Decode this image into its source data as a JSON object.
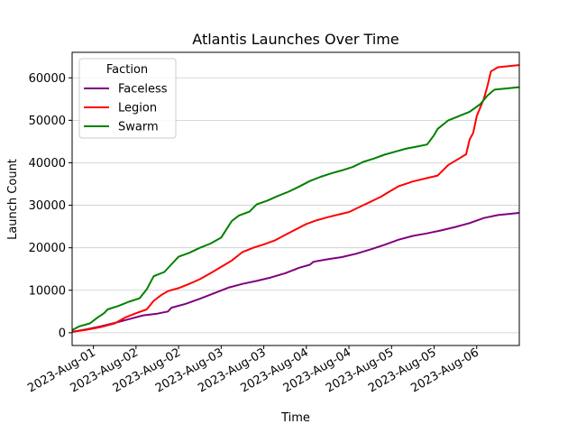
{
  "chart_data": {
    "type": "line",
    "title": "Atlantis Launches Over Time",
    "xlabel": "Time",
    "ylabel": "Launch Count",
    "x_start": "2023-07-31T18:00",
    "x_end": "2023-08-06T00:00",
    "x_ticks": [
      {
        "x": "2023-08-01T00:00",
        "label": "2023-Aug-01"
      },
      {
        "x": "2023-08-01T12:00",
        "label": "2023-Aug-02"
      },
      {
        "x": "2023-08-02T00:00",
        "label": "2023-Aug-02"
      },
      {
        "x": "2023-08-02T12:00",
        "label": "2023-Aug-03"
      },
      {
        "x": "2023-08-03T00:00",
        "label": "2023-Aug-03"
      },
      {
        "x": "2023-08-03T12:00",
        "label": "2023-Aug-04"
      },
      {
        "x": "2023-08-04T00:00",
        "label": "2023-Aug-04"
      },
      {
        "x": "2023-08-04T12:00",
        "label": "2023-Aug-05"
      },
      {
        "x": "2023-08-05T00:00",
        "label": "2023-Aug-05"
      },
      {
        "x": "2023-08-05T12:00",
        "label": "2023-Aug-06"
      }
    ],
    "y_ticks": [
      0,
      10000,
      20000,
      30000,
      40000,
      50000,
      60000
    ],
    "ylim": [
      -3000,
      66000
    ],
    "grid": "horizontal",
    "legend": {
      "title": "Faction",
      "position": "top-left"
    },
    "series": [
      {
        "name": "Faction",
        "color": "#000000",
        "points": []
      },
      {
        "name": "Faceless",
        "color": "#800080",
        "points": [
          [
            "2023-07-31T18:00",
            200
          ],
          [
            "2023-07-31T22:00",
            800
          ],
          [
            "2023-08-01T02:00",
            1500
          ],
          [
            "2023-08-01T06:00",
            2300
          ],
          [
            "2023-08-01T10:00",
            3200
          ],
          [
            "2023-08-01T14:00",
            4100
          ],
          [
            "2023-08-01T18:00",
            4500
          ],
          [
            "2023-08-01T21:00",
            5000
          ],
          [
            "2023-08-01T22:00",
            5900
          ],
          [
            "2023-08-02T02:00",
            6800
          ],
          [
            "2023-08-02T06:00",
            8000
          ],
          [
            "2023-08-02T10:00",
            9300
          ],
          [
            "2023-08-02T14:00",
            10600
          ],
          [
            "2023-08-02T18:00",
            11500
          ],
          [
            "2023-08-02T22:00",
            12200
          ],
          [
            "2023-08-03T02:00",
            13000
          ],
          [
            "2023-08-03T06:00",
            14000
          ],
          [
            "2023-08-03T10:00",
            15300
          ],
          [
            "2023-08-03T13:00",
            16000
          ],
          [
            "2023-08-03T14:00",
            16700
          ],
          [
            "2023-08-03T18:00",
            17300
          ],
          [
            "2023-08-03T22:00",
            17800
          ],
          [
            "2023-08-04T02:00",
            18600
          ],
          [
            "2023-08-04T06:00",
            19600
          ],
          [
            "2023-08-04T10:00",
            20700
          ],
          [
            "2023-08-04T14:00",
            21900
          ],
          [
            "2023-08-04T18:00",
            22800
          ],
          [
            "2023-08-04T22:00",
            23400
          ],
          [
            "2023-08-05T02:00",
            24100
          ],
          [
            "2023-08-05T06:00",
            24900
          ],
          [
            "2023-08-05T10:00",
            25800
          ],
          [
            "2023-08-05T14:00",
            27000
          ],
          [
            "2023-08-05T18:00",
            27700
          ],
          [
            "2023-08-06T00:00",
            28200
          ]
        ]
      },
      {
        "name": "Legion",
        "color": "#ff0000",
        "points": [
          [
            "2023-07-31T18:00",
            200
          ],
          [
            "2023-07-31T22:00",
            700
          ],
          [
            "2023-08-01T02:00",
            1300
          ],
          [
            "2023-08-01T06:00",
            2200
          ],
          [
            "2023-08-01T09:00",
            3600
          ],
          [
            "2023-08-01T12:00",
            4600
          ],
          [
            "2023-08-01T15:00",
            5500
          ],
          [
            "2023-08-01T17:00",
            7500
          ],
          [
            "2023-08-01T19:00",
            8800
          ],
          [
            "2023-08-01T21:00",
            9800
          ],
          [
            "2023-08-02T00:00",
            10500
          ],
          [
            "2023-08-02T03:00",
            11500
          ],
          [
            "2023-08-02T06:00",
            12600
          ],
          [
            "2023-08-02T09:00",
            14000
          ],
          [
            "2023-08-02T12:00",
            15500
          ],
          [
            "2023-08-02T15:00",
            17000
          ],
          [
            "2023-08-02T18:00",
            19000
          ],
          [
            "2023-08-02T21:00",
            20000
          ],
          [
            "2023-08-03T00:00",
            20800
          ],
          [
            "2023-08-03T03:00",
            21700
          ],
          [
            "2023-08-03T06:00",
            23000
          ],
          [
            "2023-08-03T09:00",
            24300
          ],
          [
            "2023-08-03T12:00",
            25600
          ],
          [
            "2023-08-03T15:00",
            26500
          ],
          [
            "2023-08-03T18:00",
            27200
          ],
          [
            "2023-08-03T21:00",
            27800
          ],
          [
            "2023-08-04T00:00",
            28400
          ],
          [
            "2023-08-04T03:00",
            29600
          ],
          [
            "2023-08-04T06:00",
            30800
          ],
          [
            "2023-08-04T09:00",
            32000
          ],
          [
            "2023-08-04T11:00",
            33000
          ],
          [
            "2023-08-04T14:00",
            34500
          ],
          [
            "2023-08-04T18:00",
            35600
          ],
          [
            "2023-08-04T22:00",
            36400
          ],
          [
            "2023-08-05T01:00",
            37000
          ],
          [
            "2023-08-05T04:00",
            39500
          ],
          [
            "2023-08-05T07:00",
            41000
          ],
          [
            "2023-08-05T09:00",
            42000
          ],
          [
            "2023-08-05T10:00",
            45500
          ],
          [
            "2023-08-05T11:00",
            47000
          ],
          [
            "2023-08-05T12:00",
            51000
          ],
          [
            "2023-08-05T14:00",
            55000
          ],
          [
            "2023-08-05T15:00",
            58000
          ],
          [
            "2023-08-05T16:00",
            61500
          ],
          [
            "2023-08-05T18:00",
            62500
          ],
          [
            "2023-08-06T00:00",
            63000
          ]
        ]
      },
      {
        "name": "Swarm",
        "color": "#008000",
        "points": [
          [
            "2023-07-31T18:00",
            600
          ],
          [
            "2023-07-31T20:00",
            1500
          ],
          [
            "2023-07-31T23:00",
            2200
          ],
          [
            "2023-08-01T01:00",
            3500
          ],
          [
            "2023-08-01T03:00",
            4600
          ],
          [
            "2023-08-01T04:00",
            5500
          ],
          [
            "2023-08-01T07:00",
            6300
          ],
          [
            "2023-08-01T10:00",
            7300
          ],
          [
            "2023-08-01T13:00",
            8100
          ],
          [
            "2023-08-01T15:00",
            10200
          ],
          [
            "2023-08-01T17:00",
            13300
          ],
          [
            "2023-08-01T20:00",
            14300
          ],
          [
            "2023-08-01T22:00",
            16100
          ],
          [
            "2023-08-02T00:00",
            17900
          ],
          [
            "2023-08-02T03:00",
            18800
          ],
          [
            "2023-08-02T06:00",
            20000
          ],
          [
            "2023-08-02T09:00",
            21000
          ],
          [
            "2023-08-02T12:00",
            22400
          ],
          [
            "2023-08-02T15:00",
            26300
          ],
          [
            "2023-08-02T17:00",
            27600
          ],
          [
            "2023-08-02T20:00",
            28500
          ],
          [
            "2023-08-02T22:00",
            30200
          ],
          [
            "2023-08-03T01:00",
            31100
          ],
          [
            "2023-08-03T04:00",
            32200
          ],
          [
            "2023-08-03T07:00",
            33200
          ],
          [
            "2023-08-03T10:00",
            34400
          ],
          [
            "2023-08-03T13:00",
            35700
          ],
          [
            "2023-08-03T16:00",
            36700
          ],
          [
            "2023-08-03T19:00",
            37500
          ],
          [
            "2023-08-03T22:00",
            38200
          ],
          [
            "2023-08-04T01:00",
            39000
          ],
          [
            "2023-08-04T04:00",
            40200
          ],
          [
            "2023-08-04T07:00",
            41000
          ],
          [
            "2023-08-04T10:00",
            41900
          ],
          [
            "2023-08-04T13:00",
            42600
          ],
          [
            "2023-08-04T16:00",
            43300
          ],
          [
            "2023-08-04T19:00",
            43800
          ],
          [
            "2023-08-04T22:00",
            44300
          ],
          [
            "2023-08-05T00:00",
            46500
          ],
          [
            "2023-08-05T01:00",
            48000
          ],
          [
            "2023-08-05T04:00",
            50000
          ],
          [
            "2023-08-05T07:00",
            51000
          ],
          [
            "2023-08-05T10:00",
            52000
          ],
          [
            "2023-08-05T13:00",
            53800
          ],
          [
            "2023-08-05T15:00",
            55800
          ],
          [
            "2023-08-05T17:00",
            57200
          ],
          [
            "2023-08-06T00:00",
            57800
          ]
        ]
      }
    ]
  }
}
